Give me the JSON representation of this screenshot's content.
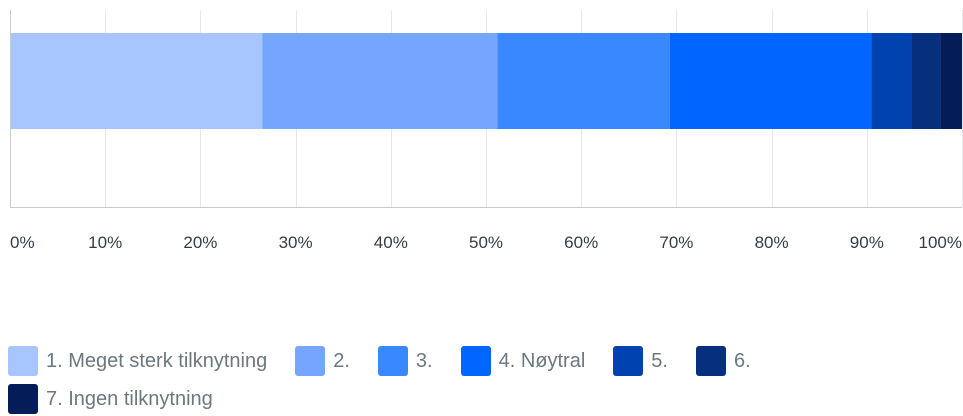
{
  "chart_data": {
    "type": "bar",
    "orientation": "horizontal",
    "stacked": true,
    "percent": true,
    "categories": [
      ""
    ],
    "series": [
      {
        "name": "1. Meget sterk tilknytning",
        "values": [
          26.5
        ],
        "color": "#a7c6ff"
      },
      {
        "name": "2.",
        "values": [
          24.7
        ],
        "color": "#74a5ff"
      },
      {
        "name": "3.",
        "values": [
          18.1
        ],
        "color": "#3a88ff"
      },
      {
        "name": "4. Nøytral",
        "values": [
          21.2
        ],
        "color": "#0066ff"
      },
      {
        "name": "5.",
        "values": [
          4.2
        ],
        "color": "#0043b0"
      },
      {
        "name": "6.",
        "values": [
          3.0
        ],
        "color": "#06307d"
      },
      {
        "name": "7. Ingen tilknytning",
        "values": [
          2.3
        ],
        "color": "#041d59"
      }
    ],
    "xlim": [
      0,
      100
    ],
    "x_ticks": [
      "0%",
      "10%",
      "20%",
      "30%",
      "40%",
      "50%",
      "60%",
      "70%",
      "80%",
      "90%",
      "100%"
    ],
    "grid": true,
    "legend": "bottom"
  }
}
